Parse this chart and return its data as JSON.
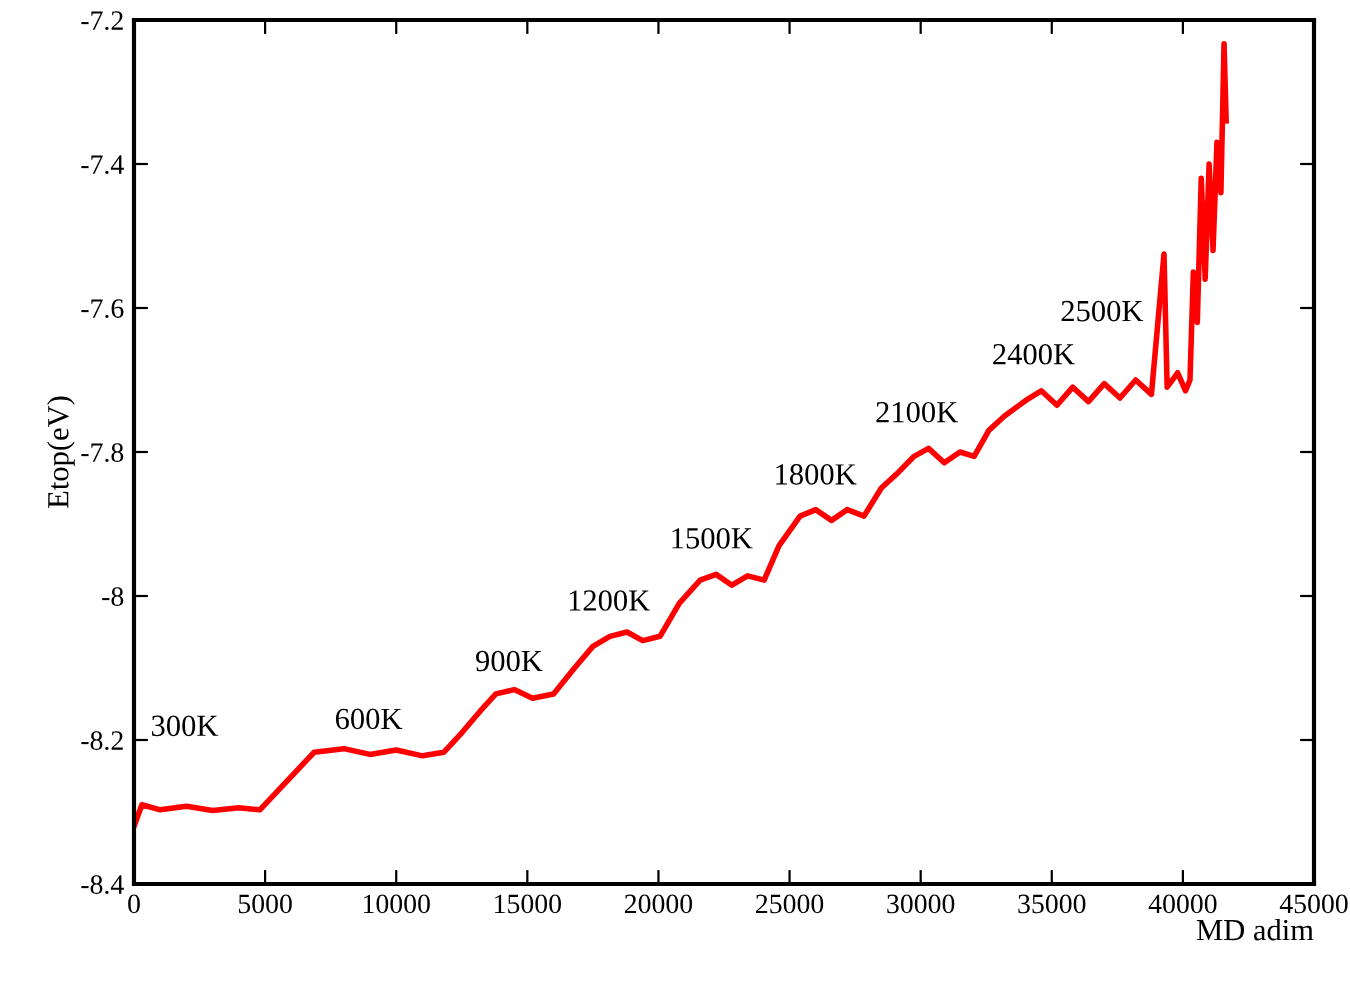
{
  "chart_data": {
    "type": "line",
    "xlabel": "MD adim",
    "ylabel": "Etop(eV)",
    "xlim": [
      0,
      45000
    ],
    "xticks": [
      0,
      5000,
      10000,
      15000,
      20000,
      25000,
      30000,
      35000,
      40000,
      45000
    ],
    "ylim": [
      -8.4,
      -7.2
    ],
    "yticks": [
      -8.4,
      -8.2,
      {
        "value": -8,
        "label": "-8"
      },
      -7.8,
      -7.6,
      -7.4,
      -7.2
    ],
    "grid": false,
    "legend": false,
    "marker": "none",
    "line_style": "solid",
    "series": [
      {
        "color": "#ff0000",
        "x": [
          0,
          300,
          1000,
          2000,
          3000,
          4000,
          4800,
          6870,
          8000,
          9000,
          10000,
          11000,
          11820,
          12500,
          13200,
          13800,
          14500,
          15200,
          16000,
          16800,
          17500,
          18150,
          18800,
          19400,
          20060,
          20800,
          21590,
          22200,
          22800,
          23400,
          24030,
          24600,
          25400,
          26000,
          26600,
          27200,
          27840,
          28500,
          29100,
          29750,
          30300,
          30900,
          31500,
          32040,
          32600,
          33200,
          34020,
          34600,
          35200,
          35800,
          36400,
          37000,
          37600,
          38200,
          38800,
          39280,
          39400,
          39800,
          40100,
          40270,
          40400,
          40550,
          40700,
          40850,
          41000,
          41150,
          41300,
          41450,
          41570,
          41650
        ],
        "values": [
          -8.32,
          -8.29,
          -8.297,
          -8.292,
          -8.298,
          -8.294,
          -8.297,
          -8.217,
          -8.212,
          -8.22,
          -8.214,
          -8.222,
          -8.217,
          -8.19,
          -8.16,
          -8.136,
          -8.13,
          -8.142,
          -8.136,
          -8.1,
          -8.07,
          -8.056,
          -8.05,
          -8.062,
          -8.056,
          -8.01,
          -7.978,
          -7.97,
          -7.985,
          -7.972,
          -7.978,
          -7.93,
          -7.889,
          -7.88,
          -7.895,
          -7.88,
          -7.889,
          -7.85,
          -7.83,
          -7.806,
          -7.795,
          -7.815,
          -7.8,
          -7.806,
          -7.77,
          -7.75,
          -7.728,
          -7.715,
          -7.735,
          -7.71,
          -7.73,
          -7.705,
          -7.725,
          -7.7,
          -7.72,
          -7.525,
          -7.71,
          -7.69,
          -7.715,
          -7.7,
          -7.55,
          -7.62,
          -7.42,
          -7.56,
          -7.4,
          -7.52,
          -7.37,
          -7.44,
          -7.233,
          -7.34
        ]
      }
    ],
    "annotations": [
      "300K",
      "600K",
      "900K",
      "1200K",
      "1500K",
      "1800K",
      "2100K",
      "2400K",
      "2500K"
    ]
  }
}
